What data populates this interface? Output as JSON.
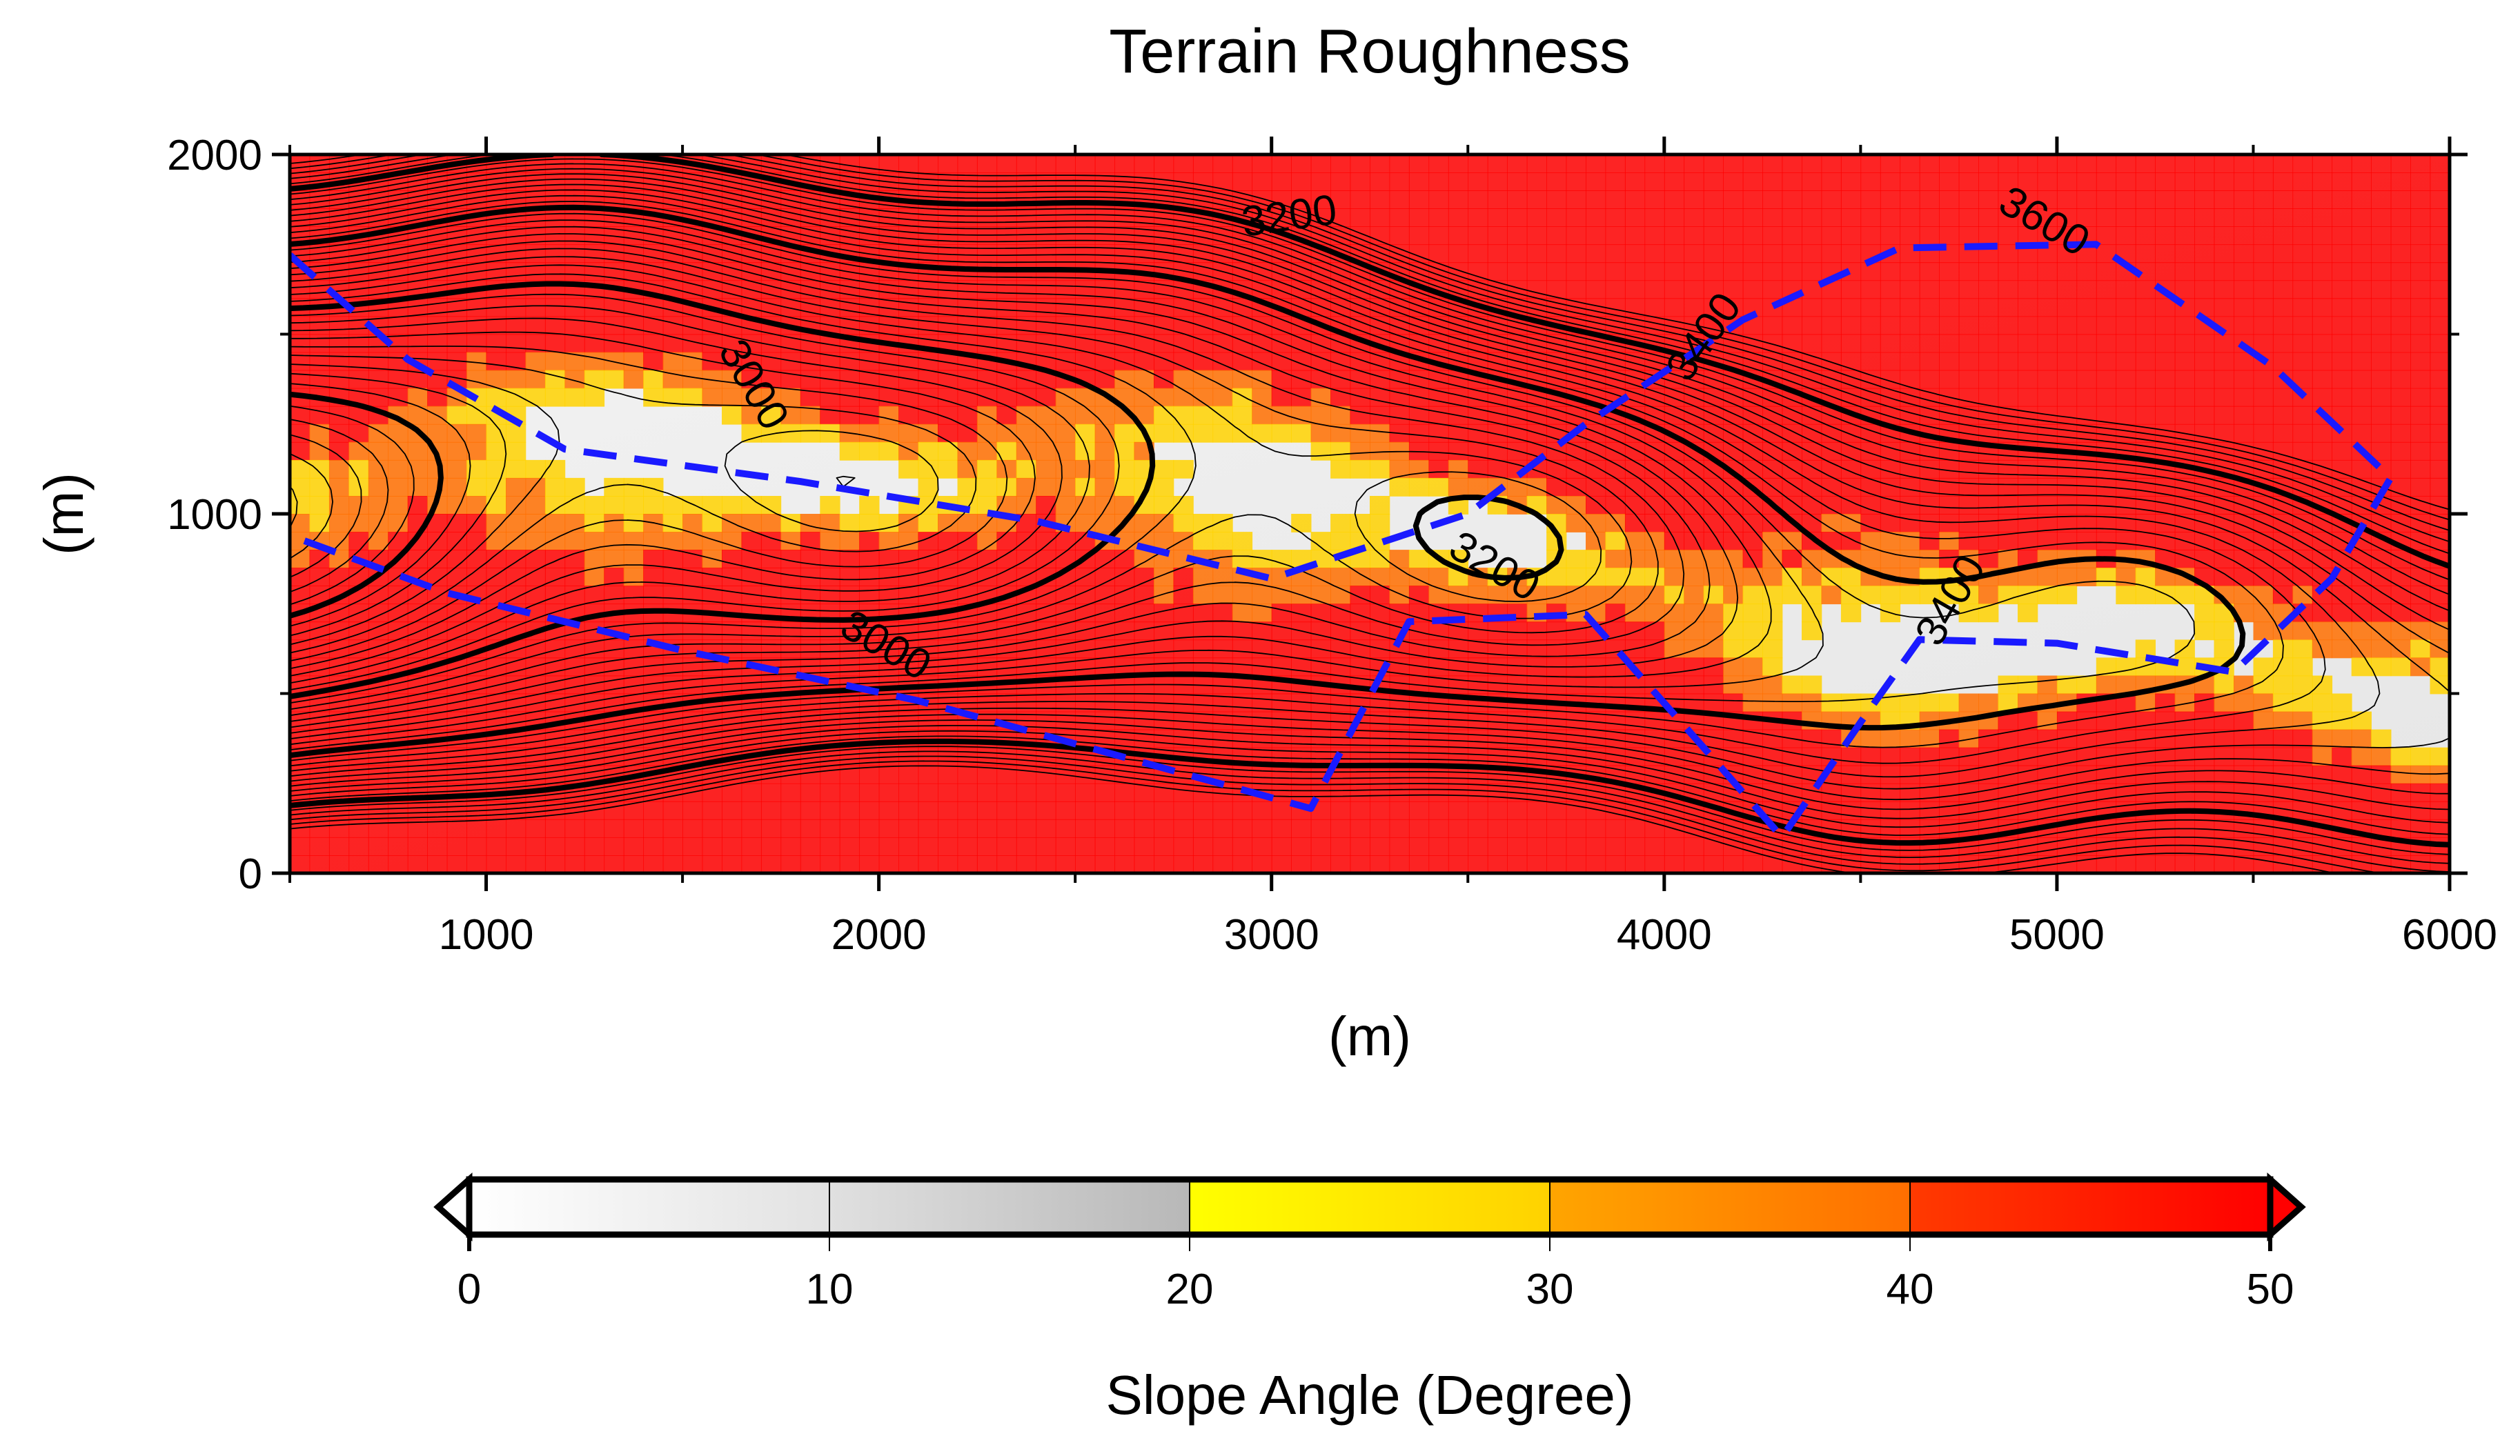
{
  "chart_data": {
    "type": "heatmap",
    "title": "Terrain Roughness",
    "xlabel": "(m)",
    "ylabel": "(m)",
    "xlim": [
      500,
      6000
    ],
    "ylim": [
      0,
      2000
    ],
    "x_ticks": [
      1000,
      2000,
      3000,
      4000,
      5000,
      6000
    ],
    "y_ticks": [
      0,
      1000,
      2000
    ],
    "grid": false,
    "contour_labels": [
      {
        "text": "3200",
        "x": 3050,
        "y": 1790
      },
      {
        "text": "3000",
        "x": 1650,
        "y": 1340
      },
      {
        "text": "3400",
        "x": 4130,
        "y": 1470
      },
      {
        "text": "3600",
        "x": 4950,
        "y": 1780
      },
      {
        "text": "3200",
        "x": 3550,
        "y": 820
      },
      {
        "text": "3000",
        "x": 2000,
        "y": 600
      },
      {
        "text": "3400",
        "x": 4760,
        "y": 740
      }
    ],
    "colorbar": {
      "label": "Slope Angle (Degree)",
      "range": [
        0,
        50
      ],
      "ticks": [
        0,
        10,
        20,
        30,
        40,
        50
      ],
      "extend": "both",
      "bins": [
        {
          "from": 0,
          "to": 10,
          "color_start": "#ffffff",
          "color_end": "#e2e2e2"
        },
        {
          "from": 10,
          "to": 20,
          "color_start": "#e0e0e0",
          "color_end": "#b8b8b8"
        },
        {
          "from": 20,
          "to": 30,
          "color_start": "#ffff00",
          "color_end": "#ffd200"
        },
        {
          "from": 30,
          "to": 40,
          "color_start": "#ffa500",
          "color_end": "#ff6e00"
        },
        {
          "from": 40,
          "to": 50,
          "color_start": "#ff3a00",
          "color_end": "#ff0000"
        }
      ]
    },
    "dashed_boundary_color": "#1a1aff"
  }
}
